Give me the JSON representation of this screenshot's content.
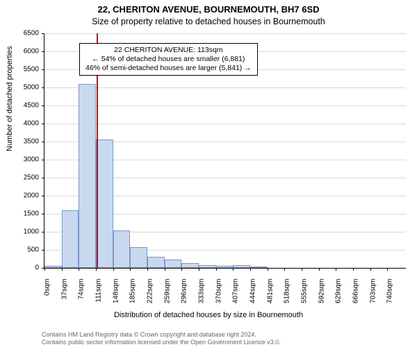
{
  "title_line1": "22, CHERITON AVENUE, BOURNEMOUTH, BH7 6SD",
  "title_line2": "Size of property relative to detached houses in Bournemouth",
  "ylabel": "Number of detached properties",
  "xlabel": "Distribution of detached houses by size in Bournemouth",
  "footer_line1": "Contains HM Land Registry data © Crown copyright and database right 2024.",
  "footer_line2": "Contains public sector information licensed under the Open Government Licence v3.0.",
  "annotation": {
    "line1": "22 CHERITON AVENUE: 113sqm",
    "line2": "← 54% of detached houses are smaller (6,881)",
    "line3": "46% of semi-detached houses are larger (5,841) →"
  },
  "marker": {
    "value_sqm": 113,
    "color": "#cc0000",
    "line_width": 2,
    "height_value": 6500
  },
  "chart": {
    "type": "histogram",
    "background_color": "#ffffff",
    "grid_color": "#d9d9d9",
    "axis_color": "#000000",
    "bar_fill": "#c8d8ef",
    "bar_stroke": "#7a99c9",
    "bar_stroke_width": 1,
    "ylim": [
      0,
      6500
    ],
    "ytick_step": 500,
    "xlim_sqm": [
      0,
      780
    ],
    "xtick_step_sqm": 37,
    "xtick_count": 21,
    "xtick_unit": "sqm",
    "bin_width_sqm": 37,
    "values": [
      50,
      1600,
      5100,
      3550,
      1030,
      580,
      300,
      230,
      130,
      80,
      60,
      75,
      40,
      0,
      0,
      0,
      0,
      0,
      0,
      0,
      0
    ]
  },
  "fonts": {
    "title_size_pt": 13,
    "subtitle_size_pt": 12,
    "axis_label_size_pt": 11,
    "tick_size_pt": 10,
    "annotation_size_pt": 10,
    "footer_size_pt": 9
  }
}
